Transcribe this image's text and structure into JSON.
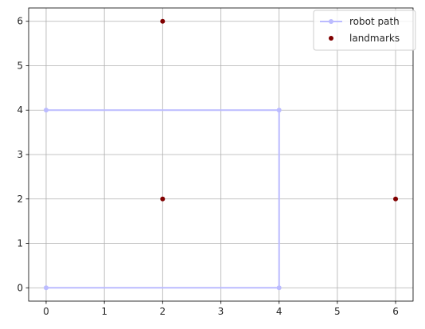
{
  "chart_data": {
    "type": "scatter",
    "title": "",
    "xlabel": "",
    "ylabel": "",
    "xlim": [
      -0.3,
      6.3
    ],
    "ylim": [
      -0.3,
      6.3
    ],
    "xticks": [
      0,
      1,
      2,
      3,
      4,
      5,
      6
    ],
    "yticks": [
      0,
      1,
      2,
      3,
      4,
      5,
      6
    ],
    "grid": true,
    "legend_position": "top-right",
    "series": [
      {
        "name": "robot path",
        "kind": "line-with-markers",
        "color": "#bbbbff",
        "points": [
          [
            0,
            0
          ],
          [
            4,
            0
          ],
          [
            4,
            4
          ],
          [
            0,
            4
          ]
        ]
      },
      {
        "name": "landmarks",
        "kind": "markers",
        "color": "#800000",
        "points": [
          [
            2,
            2
          ],
          [
            2,
            6
          ],
          [
            6,
            2
          ]
        ]
      }
    ]
  }
}
